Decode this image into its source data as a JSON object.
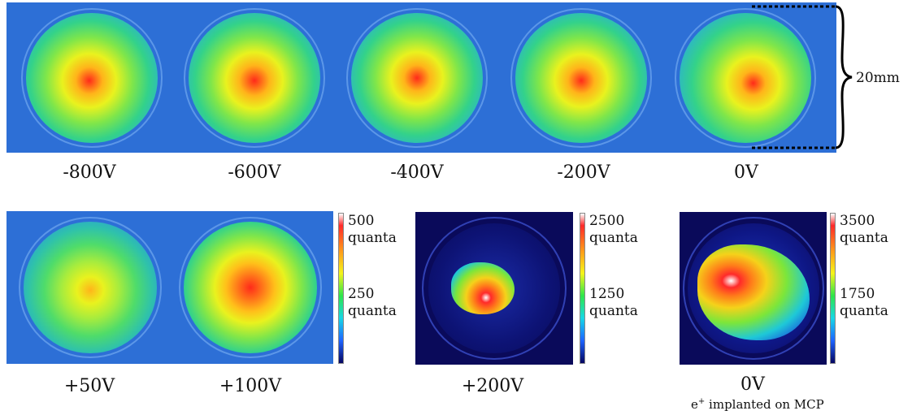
{
  "top_row": {
    "labels": [
      "-800V",
      "-600V",
      "-400V",
      "-200V",
      "0V"
    ],
    "scale_label": "20mm"
  },
  "bottom_row": {
    "labels": [
      "+50V",
      "+100V",
      "+200V",
      "0V"
    ],
    "sublabel_main": "e",
    "sublabel_sup": "+",
    "sublabel_rest": " implanted on MCP"
  },
  "colorbars": [
    {
      "top": "500",
      "mid": "250",
      "unit": "quanta"
    },
    {
      "top": "2500",
      "mid": "1250",
      "unit": "quanta"
    },
    {
      "top": "3500",
      "mid": "1750",
      "unit": "quanta"
    }
  ]
}
